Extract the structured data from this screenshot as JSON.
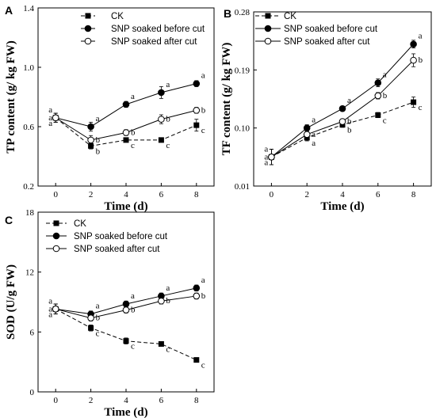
{
  "chart_data": [
    {
      "panel": "A",
      "type": "line",
      "xlabel": "Time (d)",
      "ylabel": "TP content (g/ kg FW)",
      "x": [
        0,
        2,
        4,
        6,
        8
      ],
      "xlim": [
        -1,
        9
      ],
      "ylim": [
        0.2,
        1.4
      ],
      "yticks": [
        0.2,
        0.6,
        1.0,
        1.4
      ],
      "ytick_labels": [
        "0.2",
        "0.6",
        "1.0",
        "1.4"
      ],
      "legend_position": "top-center",
      "series": [
        {
          "name": "CK",
          "marker": "square",
          "dash": true,
          "values": [
            0.66,
            0.47,
            0.51,
            0.51,
            0.61
          ],
          "errors": [
            0.03,
            0.02,
            0.01,
            0.01,
            0.04
          ],
          "labels": [
            "a",
            "b",
            "c",
            "c",
            "c"
          ]
        },
        {
          "name": "SNP soaked  before cut",
          "marker": "filled-circle",
          "dash": false,
          "values": [
            0.66,
            0.6,
            0.75,
            0.83,
            0.89
          ],
          "errors": [
            0.03,
            0.03,
            0.02,
            0.04,
            0.02
          ],
          "labels": [
            "a",
            "a",
            "a",
            "a",
            "a"
          ]
        },
        {
          "name": "SNP soaked  after cut",
          "marker": "open-circle",
          "dash": false,
          "values": [
            0.66,
            0.51,
            0.56,
            0.65,
            0.71
          ],
          "errors": [
            0.03,
            0.03,
            0.02,
            0.03,
            0.02
          ],
          "labels": [
            "a",
            "b",
            "b",
            "b",
            "b"
          ]
        }
      ]
    },
    {
      "panel": "B",
      "type": "line",
      "xlabel": "Time (d)",
      "ylabel": "TF content (g/ kg FW)",
      "x": [
        0,
        2,
        4,
        6,
        8
      ],
      "xlim": [
        -1,
        9
      ],
      "ylim": [
        0.01,
        0.28
      ],
      "yticks": [
        0.01,
        0.1,
        0.19,
        0.28
      ],
      "ytick_labels": [
        "0.01",
        "0.10",
        "0.19",
        "0.28"
      ],
      "legend_position": "top-left",
      "series": [
        {
          "name": "CK",
          "marker": "square",
          "dash": true,
          "values": [
            0.055,
            0.085,
            0.105,
            0.12,
            0.14
          ],
          "errors": [
            0.012,
            0.005,
            0.004,
            0.004,
            0.008
          ],
          "labels": [
            "a",
            "a",
            "b",
            "c",
            "c"
          ]
        },
        {
          "name": "SNP soaked  before cut",
          "marker": "filled-circle",
          "dash": false,
          "values": [
            0.055,
            0.1,
            0.13,
            0.17,
            0.23
          ],
          "errors": [
            0.012,
            0.005,
            0.004,
            0.006,
            0.006
          ],
          "labels": [
            "a",
            "a",
            "a",
            "a",
            "a"
          ]
        },
        {
          "name": "SNP soaked  after cut",
          "marker": "open-circle",
          "dash": false,
          "values": [
            0.055,
            0.09,
            0.11,
            0.15,
            0.205
          ],
          "errors": [
            0.012,
            0.005,
            0.004,
            0.005,
            0.01
          ],
          "labels": [
            "a",
            "a",
            "b",
            "b",
            "b"
          ]
        }
      ]
    },
    {
      "panel": "C",
      "type": "line",
      "xlabel": "Time (d)",
      "ylabel": "SOD (U/g FW)",
      "x": [
        0,
        2,
        4,
        6,
        8
      ],
      "xlim": [
        -1,
        9
      ],
      "ylim": [
        0,
        18
      ],
      "yticks": [
        0,
        6,
        12,
        18
      ],
      "ytick_labels": [
        "0",
        "6",
        "12",
        "18"
      ],
      "legend_position": "top-left",
      "series": [
        {
          "name": "CK",
          "marker": "square",
          "dash": true,
          "values": [
            8.3,
            6.4,
            5.1,
            4.8,
            3.2
          ],
          "errors": [
            0.5,
            0.3,
            0.3,
            0.2,
            0.2
          ],
          "labels": [
            "a",
            "c",
            "c",
            "c",
            "c"
          ]
        },
        {
          "name": "SNP soaked  before cut",
          "marker": "filled-circle",
          "dash": false,
          "values": [
            8.3,
            7.8,
            8.8,
            9.6,
            10.4
          ],
          "errors": [
            0.5,
            0.3,
            0.3,
            0.3,
            0.3
          ],
          "labels": [
            "a",
            "a",
            "a",
            "a",
            "a"
          ]
        },
        {
          "name": "SNP soaked  after cut",
          "marker": "open-circle",
          "dash": false,
          "values": [
            8.3,
            7.4,
            8.2,
            9.1,
            9.6
          ],
          "errors": [
            0.5,
            0.3,
            0.3,
            0.3,
            0.3
          ],
          "labels": [
            "a",
            "b",
            "b",
            "b",
            "b"
          ]
        }
      ]
    }
  ]
}
